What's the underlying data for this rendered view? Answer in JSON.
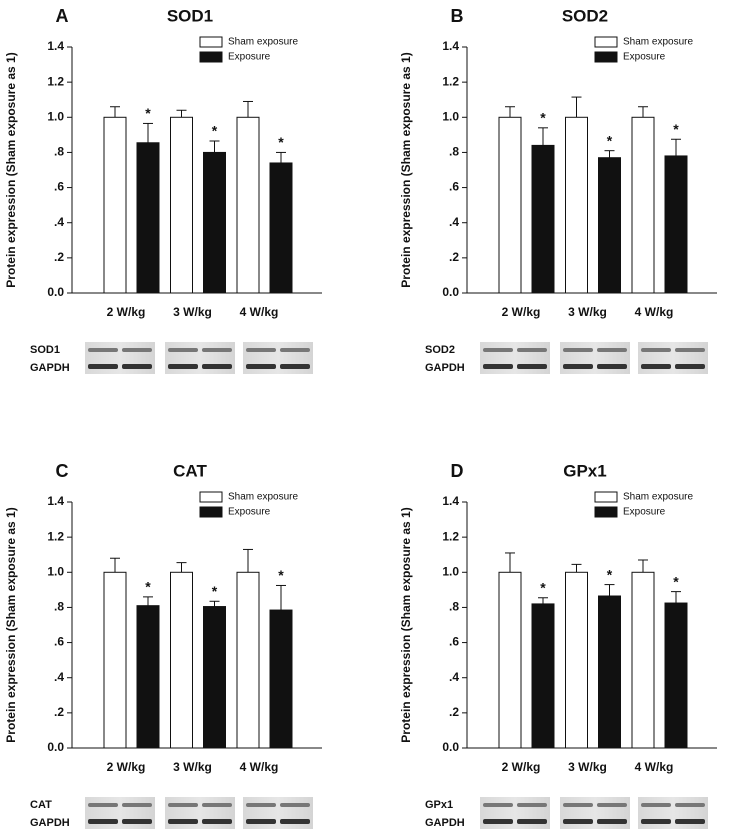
{
  "chart_data": [
    {
      "type": "bar",
      "panel": "A",
      "title": "SOD1",
      "ylabel": "Protein expression (Sham exposure as 1)",
      "categories": [
        "2 W/kg",
        "3 W/kg",
        "4 W/kg"
      ],
      "series": [
        {
          "name": "Sham exposure",
          "color": "#ffffff",
          "values": [
            1.0,
            1.0,
            1.0
          ],
          "errors": [
            0.06,
            0.04,
            0.09
          ]
        },
        {
          "name": "Exposure",
          "color": "#111111",
          "values": [
            0.855,
            0.8,
            0.74
          ],
          "errors": [
            0.11,
            0.065,
            0.06
          ],
          "significance": [
            "*",
            "*",
            "*"
          ]
        }
      ],
      "ylim": [
        0,
        1.4
      ],
      "yticks": [
        {
          "value": 0,
          "label": "0.0"
        },
        {
          "value": 0.2,
          "label": ".2"
        },
        {
          "value": 0.4,
          "label": ".4"
        },
        {
          "value": 0.6,
          "label": ".6"
        },
        {
          "value": 0.8,
          "label": ".8"
        },
        {
          "value": 1,
          "label": "1.0"
        },
        1.2,
        1.4
      ],
      "blot_labels": [
        "SOD1",
        "GAPDH"
      ]
    },
    {
      "type": "bar",
      "panel": "B",
      "title": "SOD2",
      "ylabel": "Protein expression (Sham exposure as 1)",
      "categories": [
        "2 W/kg",
        "3 W/kg",
        "4 W/kg"
      ],
      "series": [
        {
          "name": "Sham exposure",
          "color": "#ffffff",
          "values": [
            1.0,
            1.0,
            1.0
          ],
          "errors": [
            0.06,
            0.115,
            0.06
          ]
        },
        {
          "name": "Exposure",
          "color": "#111111",
          "values": [
            0.84,
            0.77,
            0.78
          ],
          "errors": [
            0.1,
            0.04,
            0.095
          ],
          "significance": [
            "*",
            "*",
            "*"
          ]
        }
      ],
      "ylim": [
        0,
        1.4
      ],
      "yticks": [
        {
          "value": 0,
          "label": "0.0"
        },
        {
          "value": 0.2,
          "label": ".2"
        },
        {
          "value": 0.4,
          "label": ".4"
        },
        {
          "value": 0.6,
          "label": ".6"
        },
        {
          "value": 0.8,
          "label": ".8"
        },
        {
          "value": 1,
          "label": "1.0"
        },
        1.2,
        1.4
      ],
      "blot_labels": [
        "SOD2",
        "GAPDH"
      ]
    },
    {
      "type": "bar",
      "panel": "C",
      "title": "CAT",
      "ylabel": "Protein expression (Sham exposure as 1)",
      "categories": [
        "2 W/kg",
        "3 W/kg",
        "4 W/kg"
      ],
      "series": [
        {
          "name": "Sham exposure",
          "color": "#ffffff",
          "values": [
            1.0,
            1.0,
            1.0
          ],
          "errors": [
            0.08,
            0.055,
            0.13
          ]
        },
        {
          "name": "Exposure",
          "color": "#111111",
          "values": [
            0.81,
            0.805,
            0.785
          ],
          "errors": [
            0.05,
            0.03,
            0.14
          ],
          "significance": [
            "*",
            "*",
            "*"
          ]
        }
      ],
      "ylim": [
        0,
        1.4
      ],
      "yticks": [
        {
          "value": 0,
          "label": "0.0"
        },
        {
          "value": 0.2,
          "label": ".2"
        },
        {
          "value": 0.4,
          "label": ".4"
        },
        {
          "value": 0.6,
          "label": ".6"
        },
        {
          "value": 0.8,
          "label": ".8"
        },
        {
          "value": 1,
          "label": "1.0"
        },
        1.2,
        1.4
      ],
      "blot_labels": [
        "CAT",
        "GAPDH"
      ]
    },
    {
      "type": "bar",
      "panel": "D",
      "title": "GPx1",
      "ylabel": "Protein expression (Sham exposure as 1)",
      "categories": [
        "2 W/kg",
        "3 W/kg",
        "4 W/kg"
      ],
      "series": [
        {
          "name": "Sham exposure",
          "color": "#ffffff",
          "values": [
            1.0,
            1.0,
            1.0
          ],
          "errors": [
            0.11,
            0.045,
            0.07
          ]
        },
        {
          "name": "Exposure",
          "color": "#111111",
          "values": [
            0.82,
            0.865,
            0.825
          ],
          "errors": [
            0.035,
            0.065,
            0.065
          ],
          "significance": [
            "*",
            "*",
            "*"
          ]
        }
      ],
      "ylim": [
        0,
        1.4
      ],
      "yticks": [
        {
          "value": 0,
          "label": "0.0"
        },
        {
          "value": 0.2,
          "label": ".2"
        },
        {
          "value": 0.4,
          "label": ".4"
        },
        {
          "value": 0.6,
          "label": ".6"
        },
        {
          "value": 0.8,
          "label": ".8"
        },
        {
          "value": 1,
          "label": "1.0"
        },
        1.2,
        1.4
      ],
      "blot_labels": [
        "GPx1",
        "GAPDH"
      ]
    }
  ]
}
